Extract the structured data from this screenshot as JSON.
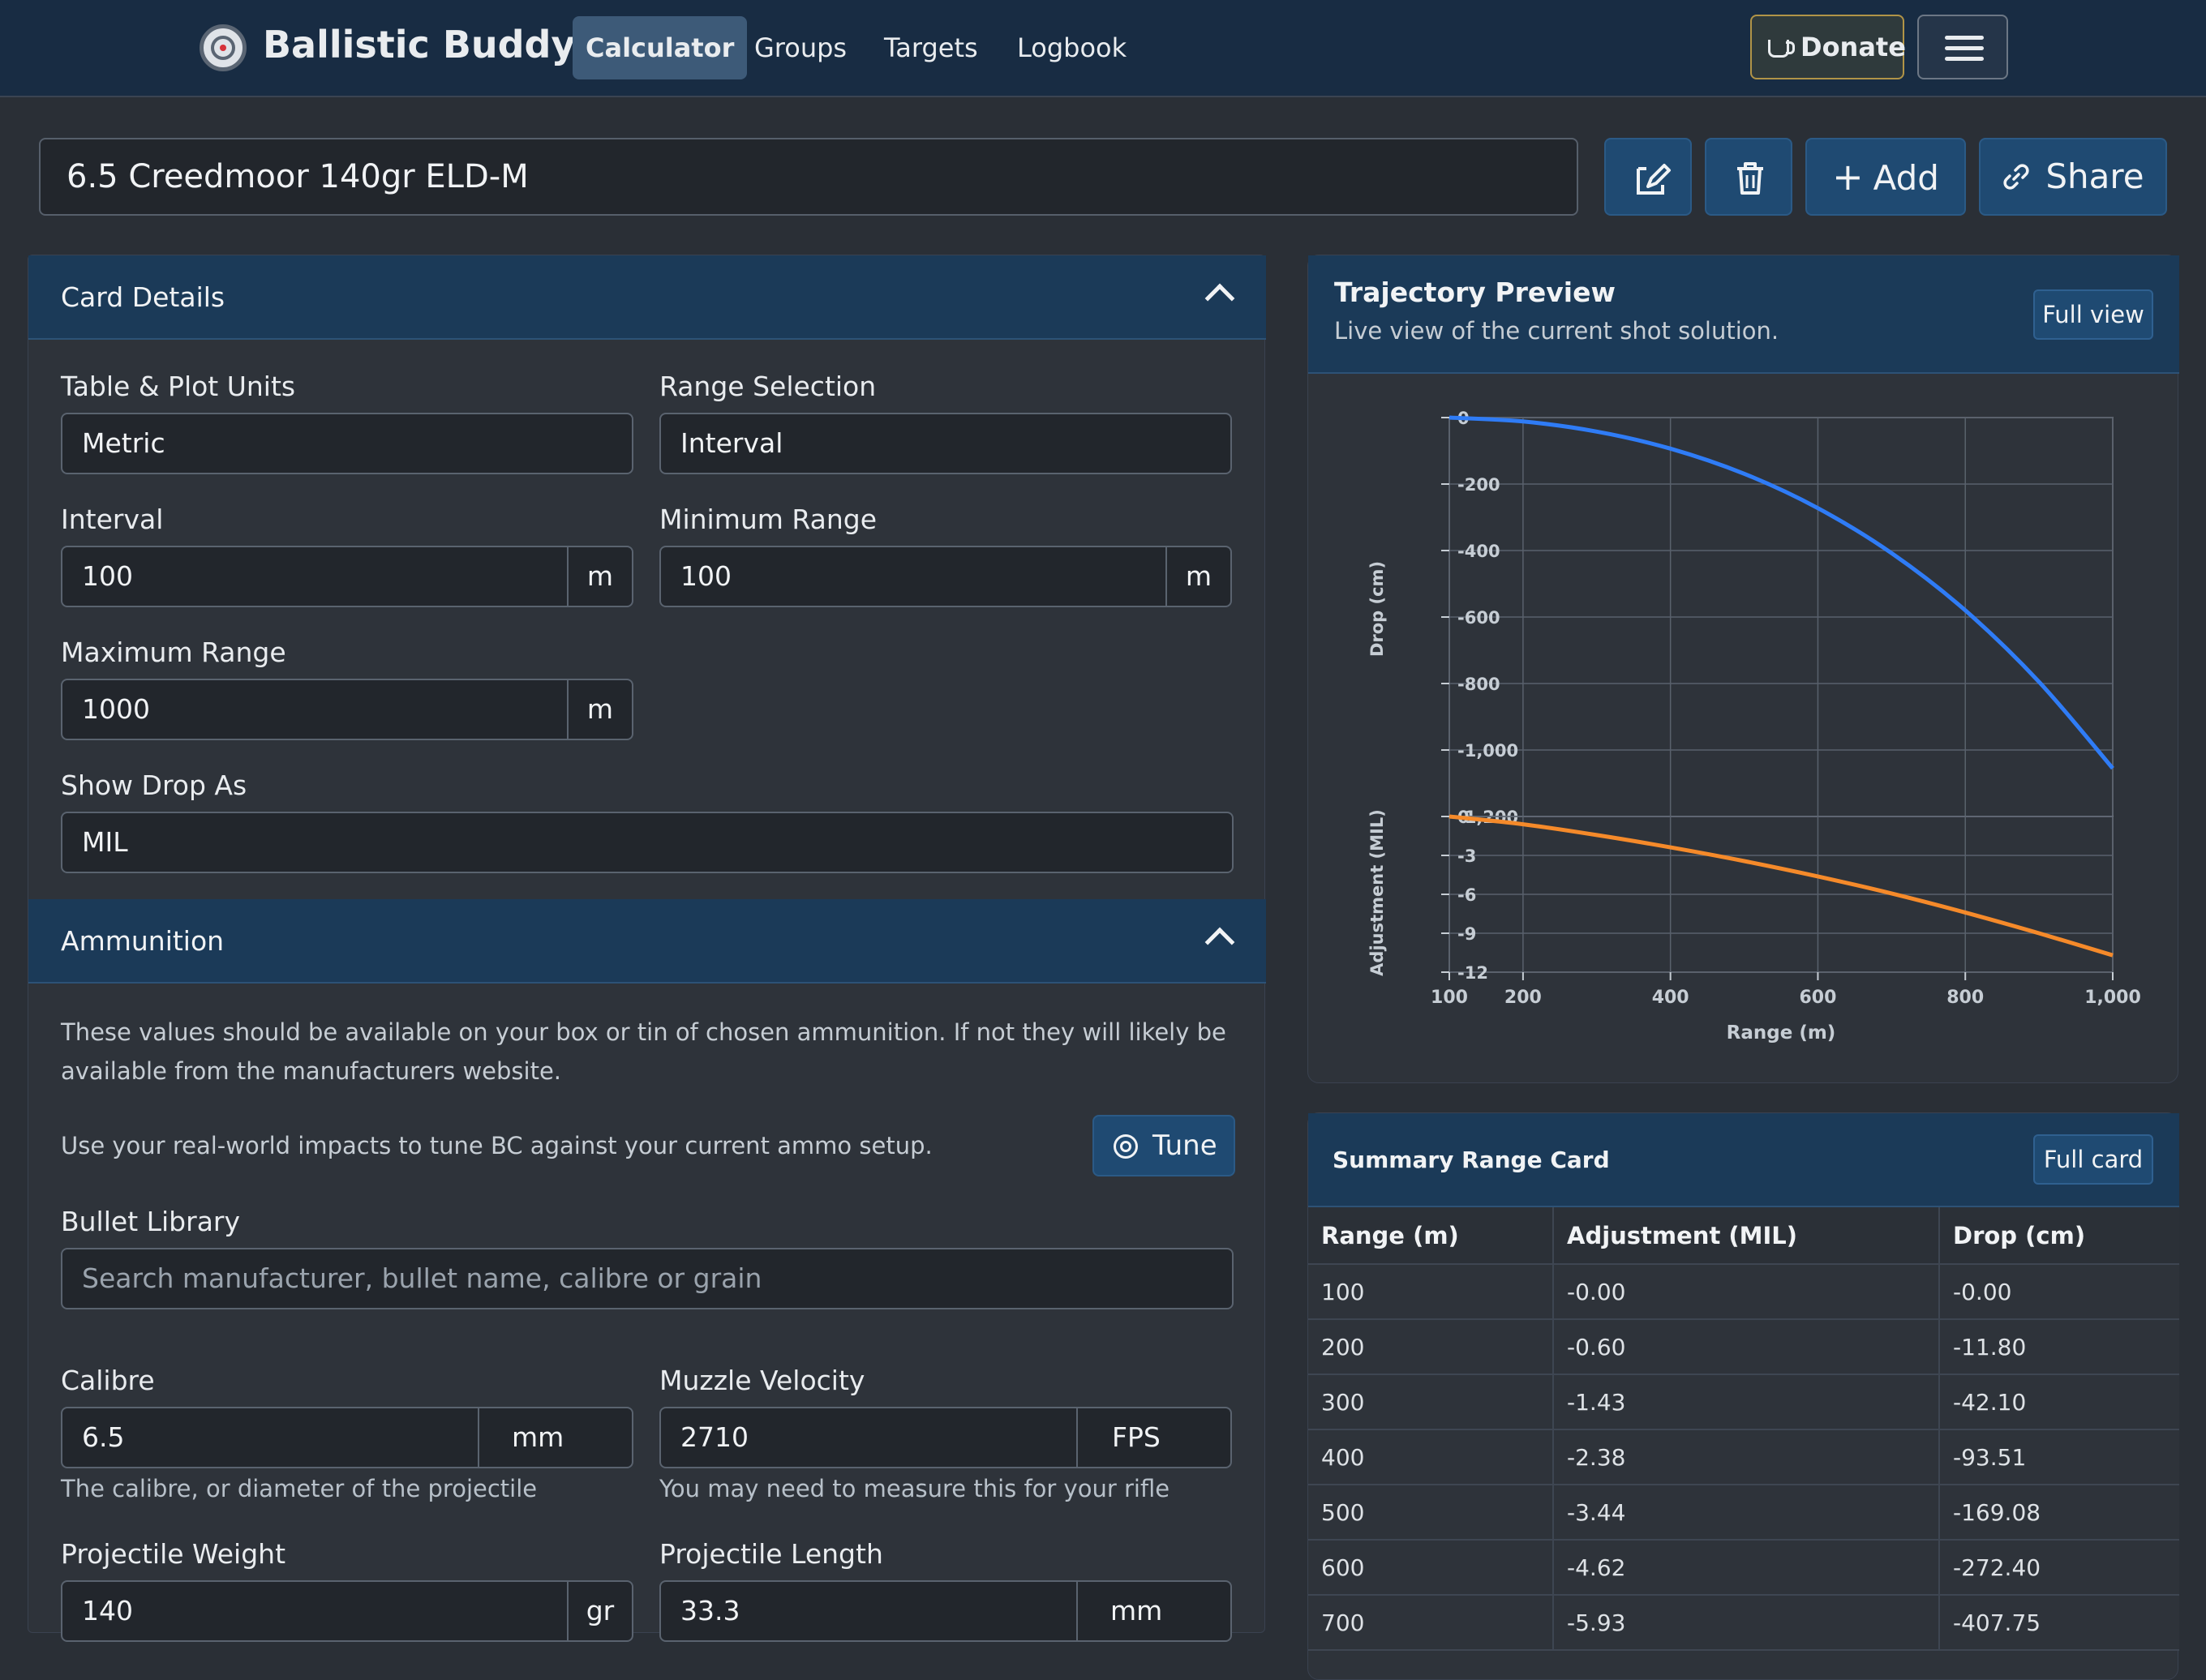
{
  "navbar": {
    "brand": "Ballistic Buddy",
    "links": [
      "Calculator",
      "Groups",
      "Targets",
      "Logbook"
    ],
    "donate": "Donate"
  },
  "card": {
    "name": "6.5 Creedmoor 140gr ELD-M",
    "add": "Add",
    "share": "Share"
  },
  "card_details": {
    "title": "Card Details",
    "units_label": "Table & Plot Units",
    "units_value": "Metric",
    "range_sel_label": "Range Selection",
    "range_sel_value": "Interval",
    "interval_label": "Interval",
    "interval_value": "100",
    "min_label": "Minimum Range",
    "min_value": "100",
    "max_label": "Maximum Range",
    "max_value": "1000",
    "range_unit": "m",
    "drop_label": "Show Drop As",
    "drop_value": "MIL"
  },
  "ammunition": {
    "title": "Ammunition",
    "para1": "These values should be available on your box or tin of chosen ammunition. If not they will likely be available from the manufacturers website.",
    "para2": "Use your real-world impacts to tune BC against your current ammo setup.",
    "tune": "Tune",
    "library_label": "Bullet Library",
    "library_placeholder": "Search manufacturer, bullet name, calibre or grain",
    "calibre_label": "Calibre",
    "calibre_value": "6.5",
    "calibre_unit": "mm",
    "calibre_help": "The calibre, or diameter of the projectile",
    "mv_label": "Muzzle Velocity",
    "mv_value": "2710",
    "mv_unit": "FPS",
    "mv_help": "You may need to measure this for your rifle",
    "weight_label": "Projectile Weight",
    "weight_value": "140",
    "weight_unit": "gr",
    "length_label": "Projectile Length",
    "length_value": "33.3",
    "length_unit": "mm"
  },
  "trajectory": {
    "title": "Trajectory Preview",
    "subtitle": "Live view of the current shot solution.",
    "full_view": "Full view"
  },
  "chart_data": {
    "type": "line",
    "xlabel": "Range (m)",
    "x_ticks": [
      "100",
      "200",
      "400",
      "600",
      "800",
      "1,000"
    ],
    "xlim": [
      100,
      1000
    ],
    "panels": [
      {
        "ylabel": "Drop (cm)",
        "ylim": [
          -1200,
          0
        ],
        "y_ticks": [
          "0",
          "-200",
          "-400",
          "-600",
          "-800",
          "-1,000",
          "-1,200"
        ],
        "color": "#2f7cf6",
        "x": [
          100,
          200,
          300,
          400,
          500,
          600,
          700,
          800,
          900,
          1000
        ],
        "y": [
          0,
          -11.8,
          -42.1,
          -93.51,
          -169.08,
          -272.4,
          -407.75,
          -580,
          -795,
          -1055
        ]
      },
      {
        "ylabel": "Adjustment (MIL)",
        "ylim": [
          -12,
          0
        ],
        "y_ticks": [
          "0",
          "-3",
          "-6",
          "-9",
          "-12"
        ],
        "color": "#f58a2a",
        "x": [
          100,
          200,
          300,
          400,
          500,
          600,
          700,
          800,
          900,
          1000
        ],
        "y": [
          0,
          -0.6,
          -1.43,
          -2.38,
          -3.44,
          -4.62,
          -5.93,
          -7.4,
          -9.0,
          -10.7
        ]
      }
    ],
    "grid": true
  },
  "summary": {
    "title": "Summary Range Card",
    "full_card": "Full card",
    "headers": [
      "Range (m)",
      "Adjustment (MIL)",
      "Drop (cm)"
    ],
    "rows": [
      [
        "100",
        "-0.00",
        "-0.00"
      ],
      [
        "200",
        "-0.60",
        "-11.80"
      ],
      [
        "300",
        "-1.43",
        "-42.10"
      ],
      [
        "400",
        "-2.38",
        "-93.51"
      ],
      [
        "500",
        "-3.44",
        "-169.08"
      ],
      [
        "600",
        "-4.62",
        "-272.40"
      ],
      [
        "700",
        "-5.93",
        "-407.75"
      ]
    ]
  }
}
